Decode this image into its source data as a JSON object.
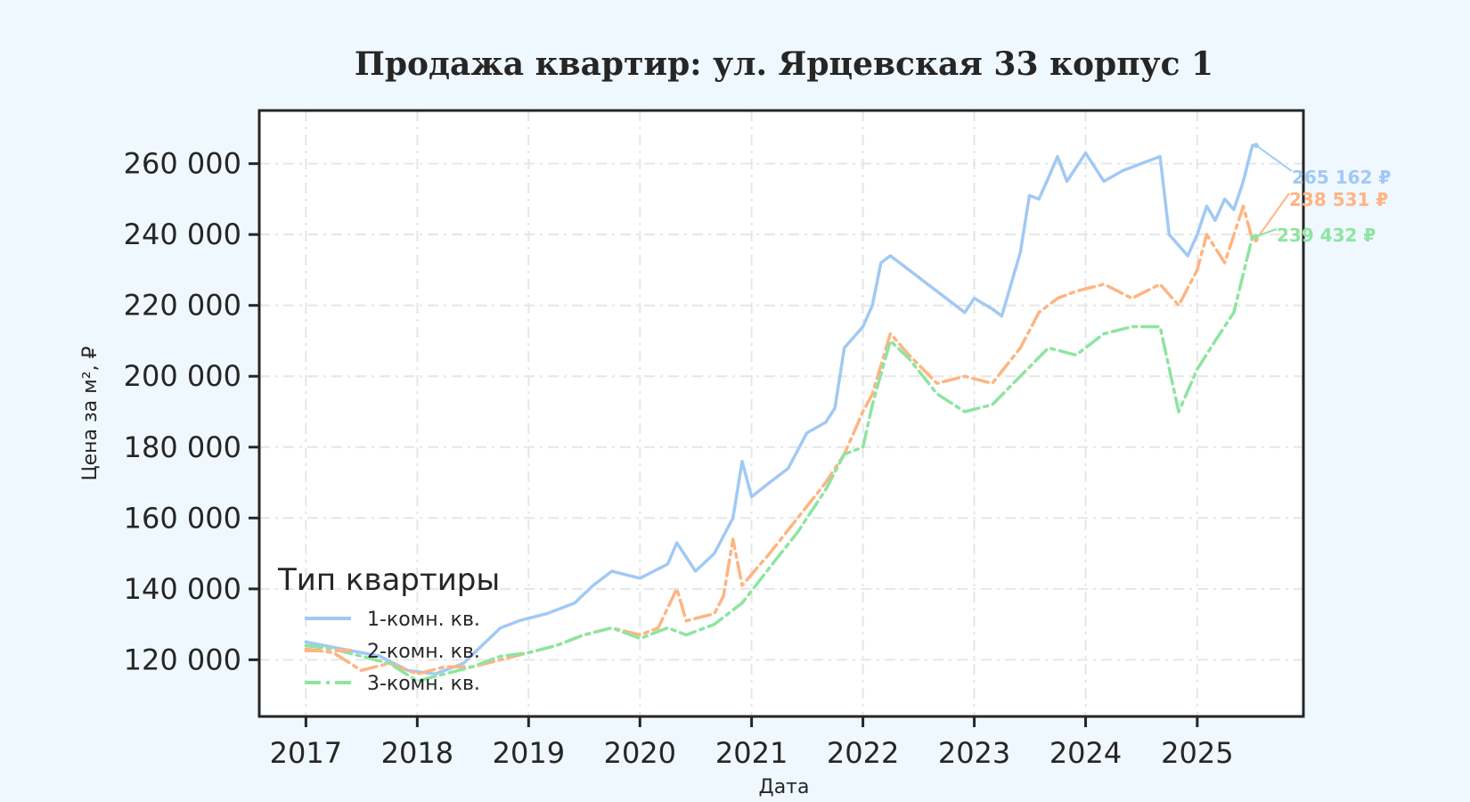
{
  "chart_data": {
    "type": "line",
    "title": "Продажа квартир: ул. Ярцевская 33 корпус 1",
    "xlabel": "Дата",
    "ylabel": "Цена за м², ₽",
    "xlim": [
      "2016-08-01",
      "2025-12-15"
    ],
    "ylim": [
      104000,
      275000
    ],
    "x_ticks": [
      {
        "date": "2017-01-01",
        "label": "2017"
      },
      {
        "date": "2018-01-01",
        "label": "2018"
      },
      {
        "date": "2019-01-01",
        "label": "2019"
      },
      {
        "date": "2020-01-01",
        "label": "2020"
      },
      {
        "date": "2021-01-01",
        "label": "2021"
      },
      {
        "date": "2022-01-01",
        "label": "2022"
      },
      {
        "date": "2023-01-01",
        "label": "2023"
      },
      {
        "date": "2024-01-01",
        "label": "2024"
      },
      {
        "date": "2025-01-01",
        "label": "2025"
      }
    ],
    "y_ticks": [
      {
        "value": 120000,
        "label": "120 000"
      },
      {
        "value": 140000,
        "label": "140 000"
      },
      {
        "value": 160000,
        "label": "160 000"
      },
      {
        "value": 180000,
        "label": "180 000"
      },
      {
        "value": 200000,
        "label": "200 000"
      },
      {
        "value": 220000,
        "label": "220 000"
      },
      {
        "value": 240000,
        "label": "240 000"
      },
      {
        "value": 260000,
        "label": "260 000"
      }
    ],
    "grid": true,
    "legend": {
      "title": "Тип квартиры",
      "placement": "lower-left"
    },
    "series": [
      {
        "name": "1-комн. кв.",
        "color": "#a1c9f4",
        "style": "solid",
        "end_label": "265 162 ₽",
        "points": [
          [
            "2017-01-01",
            125000
          ],
          [
            "2017-05-01",
            123000
          ],
          [
            "2017-09-01",
            121000
          ],
          [
            "2017-12-01",
            117000
          ],
          [
            "2018-03-01",
            116000
          ],
          [
            "2018-06-01",
            119000
          ],
          [
            "2018-08-01",
            124000
          ],
          [
            "2018-10-01",
            129000
          ],
          [
            "2018-12-01",
            131000
          ],
          [
            "2019-03-01",
            133000
          ],
          [
            "2019-06-01",
            136000
          ],
          [
            "2019-08-01",
            141000
          ],
          [
            "2019-10-01",
            145000
          ],
          [
            "2020-01-01",
            143000
          ],
          [
            "2020-04-01",
            147000
          ],
          [
            "2020-05-01",
            153000
          ],
          [
            "2020-07-01",
            145000
          ],
          [
            "2020-09-01",
            150000
          ],
          [
            "2020-11-01",
            160000
          ],
          [
            "2020-12-01",
            176000
          ],
          [
            "2021-01-01",
            166000
          ],
          [
            "2021-03-01",
            170000
          ],
          [
            "2021-05-01",
            174000
          ],
          [
            "2021-07-01",
            184000
          ],
          [
            "2021-09-01",
            187000
          ],
          [
            "2021-10-01",
            191000
          ],
          [
            "2021-11-01",
            208000
          ],
          [
            "2022-01-01",
            214000
          ],
          [
            "2022-02-01",
            220000
          ],
          [
            "2022-03-01",
            232000
          ],
          [
            "2022-04-01",
            234000
          ],
          [
            "2022-06-01",
            230000
          ],
          [
            "2022-08-01",
            226000
          ],
          [
            "2022-10-01",
            222000
          ],
          [
            "2022-12-01",
            218000
          ],
          [
            "2023-01-01",
            222000
          ],
          [
            "2023-03-01",
            219000
          ],
          [
            "2023-04-01",
            217000
          ],
          [
            "2023-06-01",
            235000
          ],
          [
            "2023-07-01",
            251000
          ],
          [
            "2023-08-01",
            250000
          ],
          [
            "2023-09-01",
            256000
          ],
          [
            "2023-10-01",
            262000
          ],
          [
            "2023-11-01",
            255000
          ],
          [
            "2024-01-01",
            263000
          ],
          [
            "2024-03-01",
            255000
          ],
          [
            "2024-05-01",
            258000
          ],
          [
            "2024-07-01",
            260000
          ],
          [
            "2024-09-01",
            262000
          ],
          [
            "2024-10-01",
            240000
          ],
          [
            "2024-12-01",
            234000
          ],
          [
            "2025-01-01",
            240000
          ],
          [
            "2025-02-01",
            248000
          ],
          [
            "2025-03-01",
            244000
          ],
          [
            "2025-04-01",
            250000
          ],
          [
            "2025-05-01",
            247000
          ],
          [
            "2025-06-01",
            255000
          ],
          [
            "2025-07-01",
            265162
          ]
        ]
      },
      {
        "name": "2-комн. кв.",
        "color": "#ffb482",
        "style": "dashdot",
        "end_label": "238 531 ₽",
        "points": [
          [
            "2017-01-01",
            123000
          ],
          [
            "2017-04-01",
            122000
          ],
          [
            "2017-07-01",
            117000
          ],
          [
            "2017-10-01",
            119000
          ],
          [
            "2018-01-01",
            116000
          ],
          [
            "2018-04-01",
            118000
          ],
          [
            "2018-07-01",
            118000
          ],
          [
            "2018-10-01",
            120000
          ],
          [
            "2019-01-01",
            122000
          ],
          [
            "2019-04-01",
            124000
          ],
          [
            "2019-07-01",
            127000
          ],
          [
            "2019-10-01",
            129000
          ],
          [
            "2020-01-01",
            127000
          ],
          [
            "2020-03-01",
            129000
          ],
          [
            "2020-05-01",
            140000
          ],
          [
            "2020-06-01",
            131000
          ],
          [
            "2020-09-01",
            133000
          ],
          [
            "2020-10-01",
            138000
          ],
          [
            "2020-11-01",
            154000
          ],
          [
            "2020-12-01",
            141000
          ],
          [
            "2021-03-01",
            150000
          ],
          [
            "2021-06-01",
            160000
          ],
          [
            "2021-09-01",
            170000
          ],
          [
            "2021-11-01",
            178000
          ],
          [
            "2022-01-01",
            190000
          ],
          [
            "2022-02-01",
            195000
          ],
          [
            "2022-04-01",
            212000
          ],
          [
            "2022-06-01",
            206000
          ],
          [
            "2022-09-01",
            198000
          ],
          [
            "2022-12-01",
            200000
          ],
          [
            "2023-03-01",
            198000
          ],
          [
            "2023-06-01",
            208000
          ],
          [
            "2023-08-01",
            218000
          ],
          [
            "2023-10-01",
            222000
          ],
          [
            "2023-12-01",
            224000
          ],
          [
            "2024-03-01",
            226000
          ],
          [
            "2024-06-01",
            222000
          ],
          [
            "2024-09-01",
            226000
          ],
          [
            "2024-11-01",
            220000
          ],
          [
            "2025-01-01",
            230000
          ],
          [
            "2025-02-01",
            240000
          ],
          [
            "2025-04-01",
            232000
          ],
          [
            "2025-06-01",
            248000
          ],
          [
            "2025-07-01",
            238531
          ]
        ]
      },
      {
        "name": "3-комн. кв.",
        "color": "#8de5a1",
        "style": "dashdot",
        "end_label": "239 432 ₽",
        "points": [
          [
            "2017-01-01",
            124000
          ],
          [
            "2017-04-01",
            123000
          ],
          [
            "2017-07-01",
            121000
          ],
          [
            "2017-10-01",
            119000
          ],
          [
            "2018-01-01",
            114000
          ],
          [
            "2018-04-01",
            116000
          ],
          [
            "2018-07-01",
            118000
          ],
          [
            "2018-10-01",
            121000
          ],
          [
            "2019-01-01",
            122000
          ],
          [
            "2019-04-01",
            124000
          ],
          [
            "2019-07-01",
            127000
          ],
          [
            "2019-10-01",
            129000
          ],
          [
            "2020-01-01",
            126000
          ],
          [
            "2020-04-01",
            129000
          ],
          [
            "2020-06-01",
            127000
          ],
          [
            "2020-09-01",
            130000
          ],
          [
            "2020-12-01",
            136000
          ],
          [
            "2021-03-01",
            146000
          ],
          [
            "2021-06-01",
            156000
          ],
          [
            "2021-09-01",
            168000
          ],
          [
            "2021-11-01",
            178000
          ],
          [
            "2022-01-01",
            180000
          ],
          [
            "2022-02-01",
            192000
          ],
          [
            "2022-04-01",
            210000
          ],
          [
            "2022-06-01",
            205000
          ],
          [
            "2022-09-01",
            195000
          ],
          [
            "2022-12-01",
            190000
          ],
          [
            "2023-03-01",
            192000
          ],
          [
            "2023-06-01",
            200000
          ],
          [
            "2023-09-01",
            208000
          ],
          [
            "2023-12-01",
            206000
          ],
          [
            "2024-03-01",
            212000
          ],
          [
            "2024-06-01",
            214000
          ],
          [
            "2024-09-01",
            214000
          ],
          [
            "2024-11-01",
            190000
          ],
          [
            "2025-01-01",
            202000
          ],
          [
            "2025-03-01",
            210000
          ],
          [
            "2025-05-01",
            218000
          ],
          [
            "2025-07-01",
            239432
          ]
        ]
      }
    ]
  }
}
